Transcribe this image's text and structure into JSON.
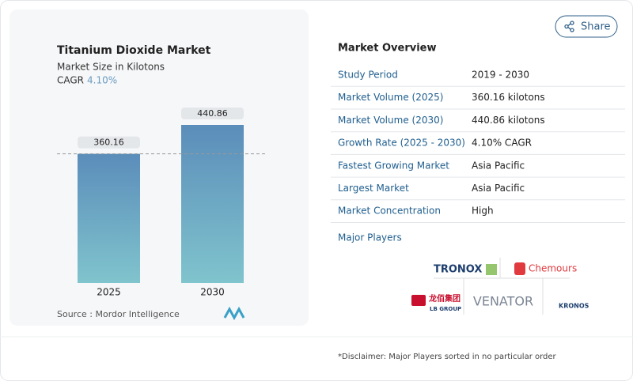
{
  "chart_data": {
    "type": "bar",
    "title": "Titanium Dioxide Market",
    "subtitle": "Market Size in Kilotons",
    "cagr_label": "CAGR",
    "cagr_value": "4.10%",
    "categories": [
      "2025",
      "2030"
    ],
    "values": [
      360.16,
      440.86
    ],
    "source": "Source :  Mordor Intelligence"
  },
  "share": "Share",
  "overview": {
    "title": "Market Overview",
    "rows": [
      [
        "Study Period",
        "2019 - 2030"
      ],
      [
        "Market Volume (2025)",
        "360.16 kilotons"
      ],
      [
        "Market Volume (2030)",
        "440.86 kilotons"
      ],
      [
        "Growth Rate (2025 - 2030)",
        "4.10% CAGR"
      ],
      [
        "Fastest Growing Market",
        "Asia Pacific"
      ],
      [
        "Largest Market",
        "Asia Pacific"
      ],
      [
        "Market Concentration",
        "High"
      ]
    ],
    "players_title": "Major Players",
    "players": [
      "TRONOX",
      "Chemours",
      "龙佰集团",
      "LB GROUP",
      "VENATOR",
      "KRONOS"
    ]
  },
  "disclaimer": "*Disclaimer: Major Players sorted in no particular order"
}
